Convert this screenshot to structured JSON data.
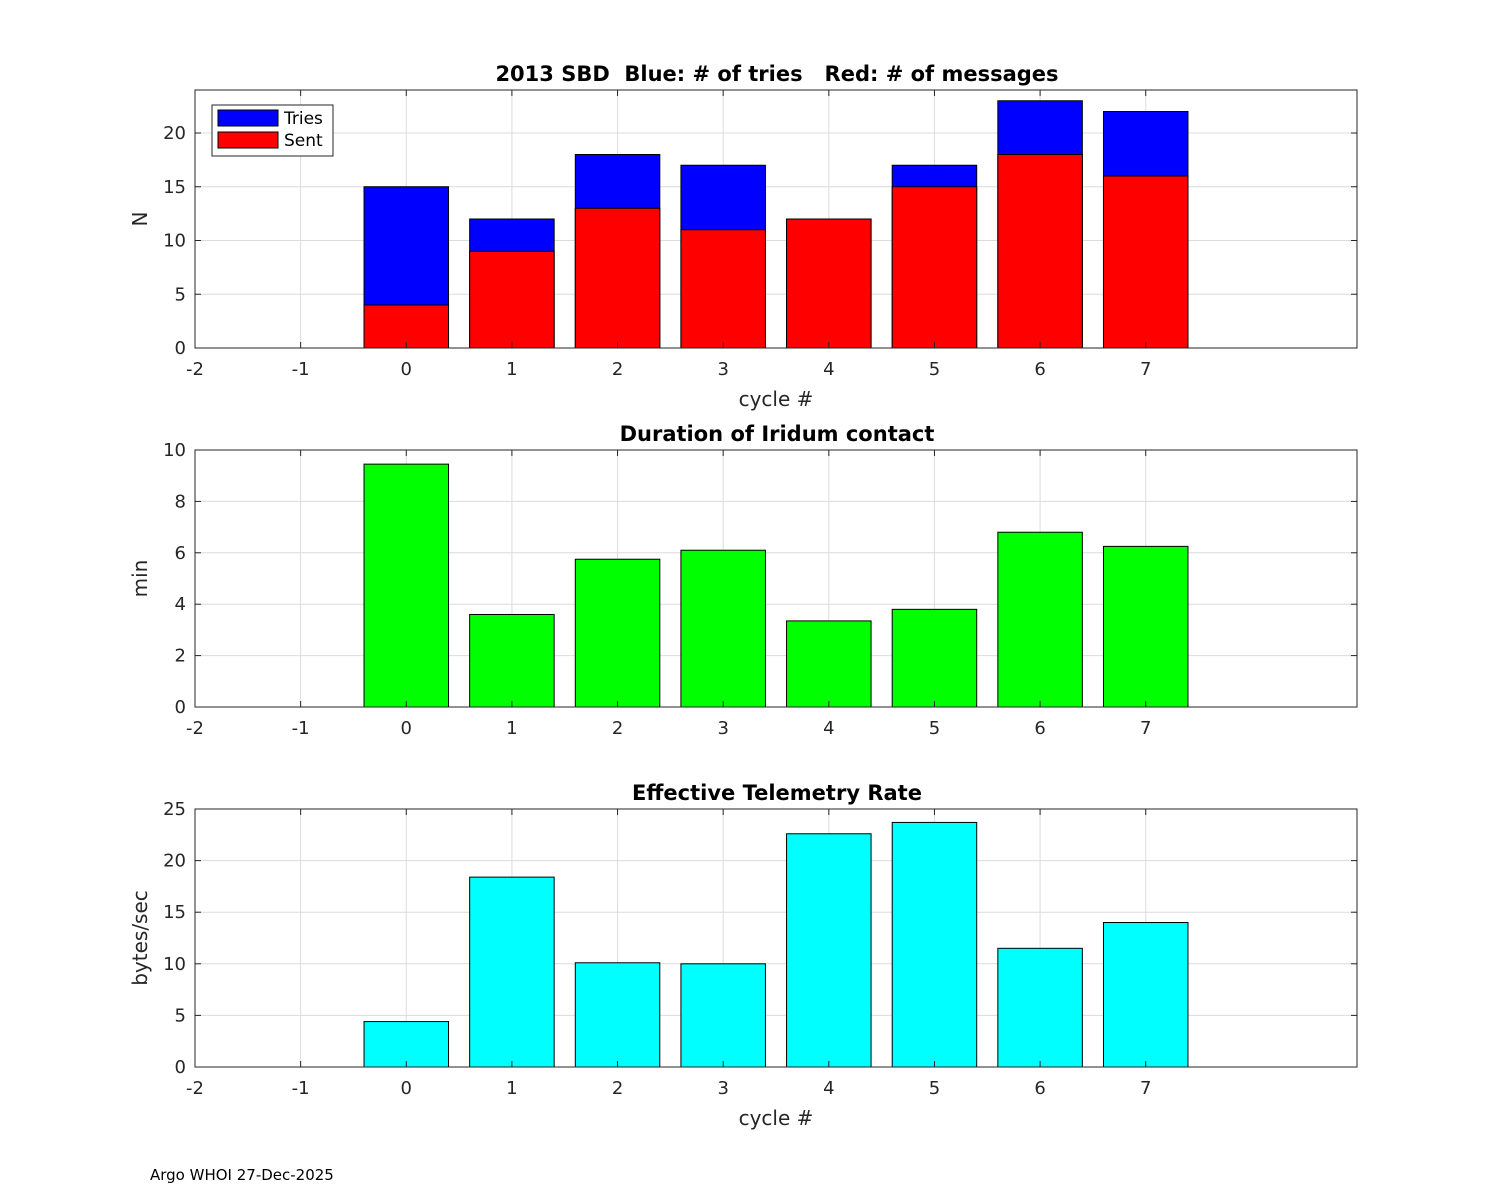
{
  "footer": "Argo WHOI 27-Dec-2025",
  "chart_data": [
    {
      "type": "bar",
      "stacked_overlay": true,
      "title": "2013 SBD  Blue: # of tries   Red: # of messages",
      "xlabel": "cycle #",
      "ylabel": "N",
      "xlim": [
        -2,
        9
      ],
      "ylim": [
        0,
        24
      ],
      "xticks": [
        -2,
        -1,
        0,
        1,
        2,
        3,
        4,
        5,
        6,
        7
      ],
      "yticks": [
        0,
        5,
        10,
        15,
        20
      ],
      "grid": true,
      "legend": {
        "placement": "top-left",
        "entries": [
          "Tries",
          "Sent"
        ]
      },
      "categories": [
        0,
        1,
        2,
        3,
        4,
        5,
        6,
        7
      ],
      "series": [
        {
          "name": "Tries",
          "color": "#0000ff",
          "values": [
            15,
            12,
            18,
            17,
            12,
            17,
            23,
            22
          ]
        },
        {
          "name": "Sent",
          "color": "#ff0000",
          "values": [
            4,
            9,
            13,
            11,
            12,
            15,
            18,
            16
          ]
        }
      ]
    },
    {
      "type": "bar",
      "title": "Duration of Iridum contact",
      "xlabel": "",
      "ylabel": "min",
      "xlim": [
        -2,
        9
      ],
      "ylim": [
        0,
        10
      ],
      "xticks": [
        -2,
        -1,
        0,
        1,
        2,
        3,
        4,
        5,
        6,
        7
      ],
      "yticks": [
        0,
        2,
        4,
        6,
        8,
        10
      ],
      "grid": true,
      "categories": [
        0,
        1,
        2,
        3,
        4,
        5,
        6,
        7
      ],
      "series": [
        {
          "name": "Duration",
          "color": "#00ff00",
          "values": [
            9.45,
            3.6,
            5.75,
            6.1,
            3.35,
            3.8,
            6.8,
            6.25
          ]
        }
      ]
    },
    {
      "type": "bar",
      "title": "Effective Telemetry Rate",
      "xlabel": "cycle #",
      "ylabel": "bytes/sec",
      "xlim": [
        -2,
        9
      ],
      "ylim": [
        0,
        25
      ],
      "xticks": [
        -2,
        -1,
        0,
        1,
        2,
        3,
        4,
        5,
        6,
        7
      ],
      "yticks": [
        0,
        5,
        10,
        15,
        20,
        25
      ],
      "grid": true,
      "categories": [
        0,
        1,
        2,
        3,
        4,
        5,
        6,
        7
      ],
      "series": [
        {
          "name": "Rate",
          "color": "#00ffff",
          "values": [
            4.4,
            18.4,
            10.1,
            10.0,
            22.6,
            23.7,
            11.5,
            14.0
          ]
        }
      ]
    }
  ]
}
